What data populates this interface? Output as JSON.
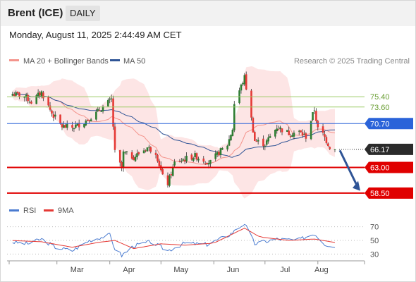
{
  "header": {
    "instrument": "Brent (ICE)",
    "timeframe": "DAILY"
  },
  "timestamp": "Monday, August 11, 2025 2:44:49 AM CET",
  "legend": {
    "items": [
      {
        "label": "MA 20 + Bollinger Bands",
        "color": "#f4948c"
      },
      {
        "label": "MA 50",
        "color": "#2f5496"
      }
    ]
  },
  "copyright": "Research © 2025 Trading Central",
  "colors": {
    "up": "#2e7d32",
    "down": "#e53935",
    "bollinger": "#fcdcdc",
    "ma20": "#f4948c",
    "ma50": "#2f5496",
    "support": "#e00000",
    "resistance_minor": "#9ccc65",
    "pivot": "#2a63d9",
    "arrow": "#2f5496"
  },
  "levels": [
    {
      "value": 75.4,
      "label": "75.40",
      "kind": "minor"
    },
    {
      "value": 73.6,
      "label": "73.60",
      "kind": "minor"
    },
    {
      "value": 70.7,
      "label": "70.70",
      "kind": "pivot"
    },
    {
      "value": 66.17,
      "label": "66.17",
      "kind": "last"
    },
    {
      "value": 63.0,
      "label": "63.00",
      "kind": "support"
    },
    {
      "value": 58.5,
      "label": "58.50",
      "kind": "support"
    }
  ],
  "x_labels": [
    "Mar",
    "Apr",
    "May",
    "Jun",
    "Jul",
    "Aug"
  ],
  "rsi": {
    "legend": [
      {
        "label": "RSI",
        "color": "#4a7bd0"
      },
      {
        "label": "9MA",
        "color": "#e53935"
      }
    ],
    "y_ticks": [
      "70",
      "50",
      "30"
    ]
  },
  "chart_data": {
    "type": "candlestick",
    "period": "daily",
    "x_range": [
      "2025-02-01",
      "2025-08-11"
    ],
    "ylim": [
      57.5,
      80.5
    ],
    "price_anchors": [
      [
        "2025-02-03",
        75.9
      ],
      [
        "2025-02-10",
        75.5
      ],
      [
        "2025-02-14",
        74.5
      ],
      [
        "2025-02-20",
        76.2
      ],
      [
        "2025-02-26",
        72.5
      ],
      [
        "2025-03-04",
        70.2
      ],
      [
        "2025-03-10",
        70.0
      ],
      [
        "2025-03-17",
        71.0
      ],
      [
        "2025-03-24",
        72.5
      ],
      [
        "2025-03-28",
        73.6
      ],
      [
        "2025-04-02",
        74.9
      ],
      [
        "2025-04-04",
        65.6
      ],
      [
        "2025-04-08",
        62.8
      ],
      [
        "2025-04-09",
        65.5
      ],
      [
        "2025-04-15",
        64.8
      ],
      [
        "2025-04-23",
        66.5
      ],
      [
        "2025-04-28",
        65.7
      ],
      [
        "2025-05-02",
        61.3
      ],
      [
        "2025-05-05",
        60.2
      ],
      [
        "2025-05-09",
        63.8
      ],
      [
        "2025-05-15",
        64.5
      ],
      [
        "2025-05-21",
        65.0
      ],
      [
        "2025-05-27",
        64.2
      ],
      [
        "2025-05-30",
        63.9
      ],
      [
        "2025-06-04",
        65.6
      ],
      [
        "2025-06-09",
        67.0
      ],
      [
        "2025-06-12",
        69.8
      ],
      [
        "2025-06-13",
        74.2
      ],
      [
        "2025-06-19",
        78.8
      ],
      [
        "2025-06-23",
        71.5
      ],
      [
        "2025-06-25",
        67.7
      ],
      [
        "2025-07-01",
        67.1
      ],
      [
        "2025-07-08",
        70.1
      ],
      [
        "2025-07-15",
        69.0
      ],
      [
        "2025-07-21",
        69.2
      ],
      [
        "2025-07-25",
        68.4
      ],
      [
        "2025-07-30",
        73.2
      ],
      [
        "2025-08-01",
        69.7
      ],
      [
        "2025-08-04",
        68.8
      ],
      [
        "2025-08-08",
        66.6
      ],
      [
        "2025-08-11",
        66.17
      ]
    ],
    "indicators": [
      "MA 20 + Bollinger Bands",
      "MA 50"
    ],
    "rsi": {
      "ylim": [
        20,
        80
      ],
      "rsi_anchors": [
        [
          "2025-02-01",
          48
        ],
        [
          "2025-02-12",
          45
        ],
        [
          "2025-02-20",
          52
        ],
        [
          "2025-02-28",
          40
        ],
        [
          "2025-03-10",
          35
        ],
        [
          "2025-03-20",
          50
        ],
        [
          "2025-04-01",
          58
        ],
        [
          "2025-04-04",
          38
        ],
        [
          "2025-04-08",
          28
        ],
        [
          "2025-04-15",
          42
        ],
        [
          "2025-04-25",
          48
        ],
        [
          "2025-05-05",
          35
        ],
        [
          "2025-05-15",
          46
        ],
        [
          "2025-05-28",
          44
        ],
        [
          "2025-06-10",
          58
        ],
        [
          "2025-06-19",
          75
        ],
        [
          "2025-06-25",
          45
        ],
        [
          "2025-07-08",
          52
        ],
        [
          "2025-07-20",
          50
        ],
        [
          "2025-07-30",
          60
        ],
        [
          "2025-08-05",
          45
        ],
        [
          "2025-08-11",
          40
        ]
      ],
      "ma9_anchors": [
        [
          "2025-02-01",
          50
        ],
        [
          "2025-02-20",
          48
        ],
        [
          "2025-03-10",
          40
        ],
        [
          "2025-03-25",
          47
        ],
        [
          "2025-04-04",
          50
        ],
        [
          "2025-04-15",
          38
        ],
        [
          "2025-05-01",
          45
        ],
        [
          "2025-05-15",
          43
        ],
        [
          "2025-06-01",
          46
        ],
        [
          "2025-06-19",
          68
        ],
        [
          "2025-06-28",
          55
        ],
        [
          "2025-07-15",
          50
        ],
        [
          "2025-07-30",
          52
        ],
        [
          "2025-08-11",
          47
        ]
      ]
    }
  }
}
